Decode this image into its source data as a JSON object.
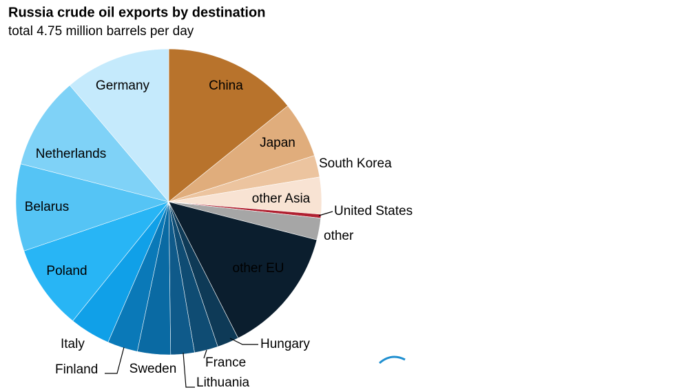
{
  "chart_data": {
    "type": "pie",
    "title": "Russia crude oil exports by destination",
    "subtitle": "total 4.75 million barrels per day",
    "categories": [
      "China",
      "Japan",
      "South Korea",
      "other Asia",
      "United States",
      "other",
      "other EU",
      "Hungary",
      "France",
      "Lithuania",
      "Sweden",
      "Finland",
      "Italy",
      "Poland",
      "Belarus",
      "Netherlands",
      "Germany"
    ],
    "values": [
      14.2,
      5.9,
      2.3,
      3.9,
      0.4,
      2.3,
      13.5,
      2.3,
      2.5,
      2.5,
      3.5,
      3.2,
      4.3,
      9,
      9.2,
      9.8,
      11.2
    ],
    "colors": [
      "#b8732c",
      "#e0ad7c",
      "#ecc49f",
      "#f8e3d3",
      "#b02030",
      "#a6a6a6",
      "#0b1e2e",
      "#0e3a57",
      "#0f4c73",
      "#0f5a8a",
      "#0a6aa3",
      "#0a79b8",
      "#10a0e8",
      "#28b5f5",
      "#55c4f5",
      "#7fd2f7",
      "#c5eafc"
    ],
    "logo": "eia"
  }
}
